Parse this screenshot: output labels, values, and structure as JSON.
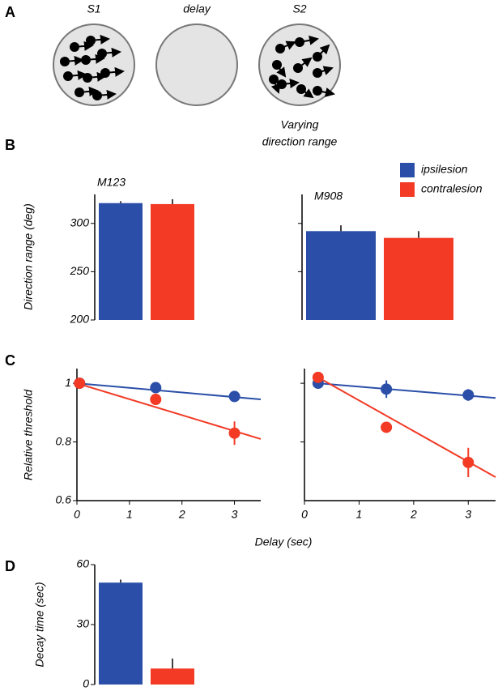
{
  "panel_a": {
    "label": "A",
    "stimuli": [
      "S1",
      "delay",
      "S2"
    ],
    "note": [
      "Varying",
      "direction range"
    ]
  },
  "chart_data": [
    {
      "type": "bar",
      "panel_label": "B",
      "title": "M123",
      "y_label": "Direction range (deg)",
      "ylim": [
        200,
        330
      ],
      "yticks": [
        200,
        250,
        300
      ],
      "tick_labels": true,
      "series": [
        {
          "name": "ipsilesion",
          "color": "#2b4fa8",
          "values": [
            321
          ],
          "errors": [
            2
          ]
        },
        {
          "name": "contralesion",
          "color": "#f23a25",
          "values": [
            320
          ],
          "errors": [
            5
          ]
        }
      ]
    },
    {
      "type": "bar",
      "title": "M908",
      "ylim": [
        200,
        330
      ],
      "yticks": [
        250,
        300
      ],
      "tick_labels": false,
      "series": [
        {
          "color": "#2b4fa8",
          "values": [
            292
          ],
          "errors": [
            6
          ]
        },
        {
          "color": "#f23a25",
          "values": [
            285
          ],
          "errors": [
            7
          ]
        }
      ]
    },
    {
      "type": "scatter",
      "panel_label": "C",
      "y_label": "Relative threshold",
      "x_label": "Delay (sec)",
      "xlim": [
        0,
        3.5
      ],
      "xticks": [
        0,
        1,
        2,
        3
      ],
      "ylim": [
        0.6,
        1.05
      ],
      "yticks": [
        0.6,
        0.8,
        1
      ],
      "tick_labels": true,
      "series": [
        {
          "color": "#2b4fa8",
          "x": [
            0.05,
            1.5,
            3
          ],
          "values": [
            1.0,
            0.985,
            0.955
          ],
          "errors": [
            0.005,
            0.01,
            0.01
          ],
          "fit": {
            "x": [
              0,
              3.5
            ],
            "values": [
              1.0,
              0.945
            ]
          }
        },
        {
          "color": "#f23a25",
          "x": [
            0.05,
            1.5,
            3
          ],
          "values": [
            1.0,
            0.945,
            0.83
          ],
          "errors": [
            0.005,
            0.008,
            0.04
          ],
          "fit": {
            "x": [
              0,
              3.5
            ],
            "values": [
              1.0,
              0.81
            ]
          }
        }
      ]
    },
    {
      "type": "scatter",
      "xlim": [
        0,
        3.5
      ],
      "xticks": [
        0,
        1,
        2,
        3
      ],
      "ylim": [
        0.6,
        1.05
      ],
      "yticks": [
        0.8,
        1
      ],
      "tick_labels": false,
      "series": [
        {
          "color": "#2b4fa8",
          "x": [
            0.25,
            1.5,
            3
          ],
          "values": [
            1.0,
            0.98,
            0.96
          ],
          "errors": [
            0.01,
            0.03,
            0.02
          ],
          "fit": {
            "x": [
              0.25,
              3.5
            ],
            "values": [
              1.0,
              0.95
            ]
          }
        },
        {
          "color": "#f23a25",
          "x": [
            0.25,
            1.5,
            3
          ],
          "values": [
            1.02,
            0.85,
            0.73
          ],
          "errors": [
            0.005,
            0.015,
            0.05
          ],
          "fit": {
            "x": [
              0.25,
              3.5
            ],
            "values": [
              1.02,
              0.68
            ]
          }
        }
      ]
    },
    {
      "type": "bar",
      "panel_label": "D",
      "y_label": "Decay time (sec)",
      "ylim": [
        0,
        60
      ],
      "yticks": [
        0,
        30,
        60
      ],
      "tick_labels": true,
      "series": [
        {
          "color": "#2b4fa8",
          "values": [
            51
          ],
          "errors": [
            1.5
          ]
        },
        {
          "color": "#f23a25",
          "values": [
            8
          ],
          "errors": [
            5
          ]
        }
      ]
    }
  ]
}
